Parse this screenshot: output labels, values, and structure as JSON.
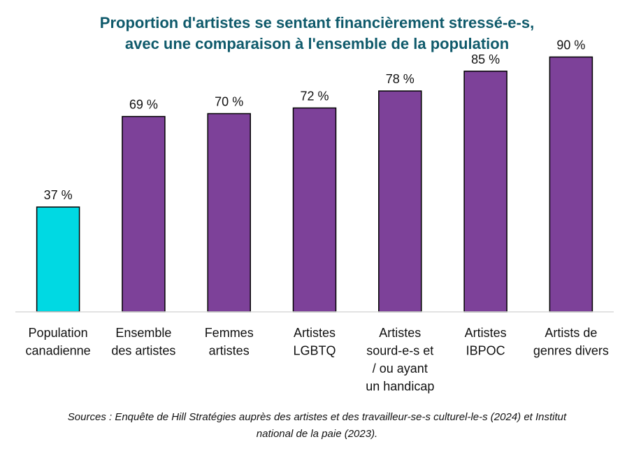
{
  "chart_data": {
    "type": "bar",
    "title": [
      "Proportion d'artistes se sentant financièrement stressé-e-s,",
      "avec une comparaison à l'ensemble de la population"
    ],
    "categories": [
      [
        "Population",
        "canadienne"
      ],
      [
        "Ensemble",
        "des artistes"
      ],
      [
        "Femmes",
        "artistes"
      ],
      [
        "Artistes",
        "LGBTQ"
      ],
      [
        "Artistes",
        "sourd-e-s et",
        "/ ou ayant",
        "un handicap"
      ],
      [
        "Artistes",
        "IBPOC"
      ],
      [
        "Artists de",
        "genres divers"
      ]
    ],
    "values": [
      37,
      69,
      70,
      72,
      78,
      85,
      90
    ],
    "value_labels": [
      "37 %",
      "69 %",
      "70 %",
      "72 %",
      "78 %",
      "85 %",
      "90 %"
    ],
    "colors": [
      "#00d9e3",
      "#7d4199",
      "#7d4199",
      "#7d4199",
      "#7d4199",
      "#7d4199",
      "#7d4199"
    ],
    "ylim": [
      0,
      100
    ],
    "xlabel": "",
    "ylabel": "",
    "legend": "none",
    "grid": false,
    "source": [
      "Sources : Enquête de Hill Stratégies auprès des artistes et des travailleur-se-s culturel-le-s (2024) et Institut",
      "national de la paie (2023)."
    ]
  }
}
